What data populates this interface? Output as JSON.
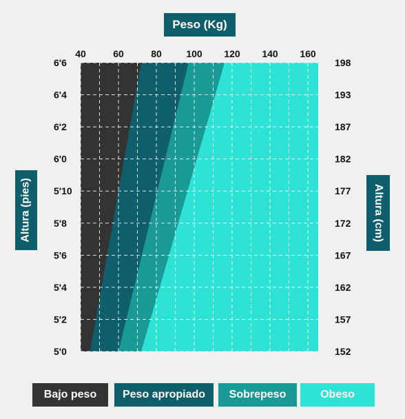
{
  "chart_data": {
    "type": "area",
    "title": "Peso (Kg)",
    "ylabel_left": "Altura (pies)",
    "ylabel_right": "Altura (cm)",
    "x_ticks": [
      "40",
      "60",
      "80",
      "100",
      "120",
      "140",
      "160"
    ],
    "xlim": [
      40,
      160
    ],
    "y_ticks_left": [
      "6'6",
      "6'4",
      "6'2",
      "6'0",
      "5'10",
      "5'8",
      "5'6",
      "5'4",
      "5'2",
      "5'0"
    ],
    "y_ticks_right": [
      "198",
      "193",
      "187",
      "182",
      "177",
      "172",
      "167",
      "162",
      "157",
      "152"
    ],
    "ylim_cm": [
      152,
      198
    ],
    "grid": true,
    "categories": [
      {
        "name": "Bajo peso",
        "color": "#333333",
        "boundary_kg_at_152": 45,
        "boundary_kg_at_198": 72
      },
      {
        "name": "Peso apropiado",
        "color": "#0e5f6b",
        "boundary_kg_at_152": 60,
        "boundary_kg_at_198": 97
      },
      {
        "name": "Sobrepeso",
        "color": "#1a9a97",
        "boundary_kg_at_152": 72,
        "boundary_kg_at_198": 116
      },
      {
        "name": "Obeso",
        "color": "#2ee2d6"
      }
    ]
  }
}
